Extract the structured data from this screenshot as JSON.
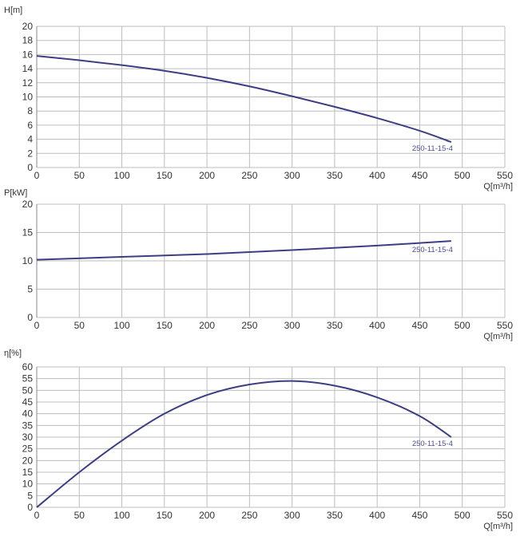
{
  "chart_data": [
    {
      "type": "line",
      "ylabel": "H[m]",
      "xlabel": "Q[m³/h]",
      "xlim": [
        0,
        550
      ],
      "ylim": [
        0,
        20
      ],
      "xticks": [
        0,
        50,
        100,
        150,
        200,
        250,
        300,
        350,
        400,
        450,
        500,
        550
      ],
      "yticks": [
        0,
        2,
        4,
        6,
        8,
        10,
        12,
        14,
        16,
        18,
        20
      ],
      "grid": true,
      "series": [
        {
          "name": "250-11-15-4",
          "x": [
            0,
            50,
            100,
            150,
            200,
            250,
            300,
            350,
            400,
            450,
            487
          ],
          "y": [
            15.8,
            15.2,
            14.5,
            13.7,
            12.7,
            11.5,
            10.1,
            8.6,
            7.0,
            5.2,
            3.6
          ]
        }
      ]
    },
    {
      "type": "line",
      "ylabel": "P[kW]",
      "xlabel": "Q[m³/h]",
      "xlim": [
        0,
        550
      ],
      "ylim": [
        0,
        20
      ],
      "xticks": [
        0,
        50,
        100,
        150,
        200,
        250,
        300,
        350,
        400,
        450,
        500,
        550
      ],
      "yticks": [
        0,
        5,
        10,
        15,
        20
      ],
      "grid": true,
      "series": [
        {
          "name": "250-11-15-4",
          "x": [
            0,
            100,
            200,
            300,
            400,
            487
          ],
          "y": [
            10.2,
            10.7,
            11.2,
            11.9,
            12.7,
            13.5
          ]
        }
      ]
    },
    {
      "type": "line",
      "ylabel": "η[%]",
      "xlabel": "Q[m³/h]",
      "xlim": [
        0,
        550
      ],
      "ylim": [
        0,
        60
      ],
      "xticks": [
        0,
        50,
        100,
        150,
        200,
        250,
        300,
        350,
        400,
        450,
        500,
        550
      ],
      "yticks": [
        0,
        5,
        10,
        15,
        20,
        25,
        30,
        35,
        40,
        45,
        50,
        55,
        60
      ],
      "grid": true,
      "series": [
        {
          "name": "250-11-15-4",
          "x": [
            0,
            50,
            100,
            150,
            200,
            250,
            300,
            350,
            400,
            450,
            487
          ],
          "y": [
            0,
            15,
            28.5,
            40,
            48,
            52.5,
            54,
            52,
            47,
            39,
            30
          ]
        }
      ]
    }
  ],
  "colors": {
    "curve": "#3d3d86",
    "grid": "#bdbdbd",
    "label": "#4a4a9a"
  }
}
